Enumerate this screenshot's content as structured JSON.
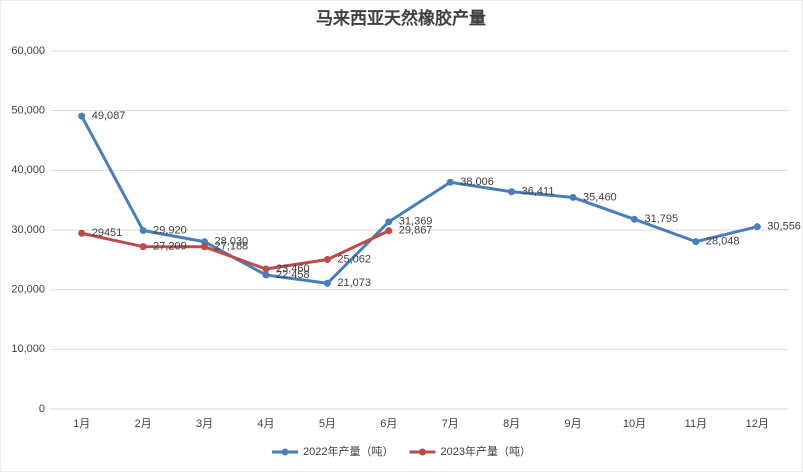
{
  "chart_data": {
    "type": "line",
    "title": "马来西亚天然橡胶产量",
    "categories": [
      "1月",
      "2月",
      "3月",
      "4月",
      "5月",
      "6月",
      "7月",
      "8月",
      "9月",
      "10月",
      "11月",
      "12月"
    ],
    "series": [
      {
        "name": "2022年产量（吨）",
        "color": "#4a7ebb",
        "values": [
          49087,
          29920,
          28030,
          22458,
          21073,
          31369,
          38006,
          36411,
          35460,
          31795,
          28048,
          30556
        ],
        "value_labels": [
          "49,087",
          "29,920",
          "28,030",
          "22,458",
          "21,073",
          "31,369",
          "38,006",
          "36,411",
          "35,460",
          "31,795",
          "28,048",
          "30,556"
        ]
      },
      {
        "name": "2023年产量（吨）",
        "color": "#be4b48",
        "values": [
          29451,
          27209,
          27188,
          23460,
          25062,
          29867,
          null,
          null,
          null,
          null,
          null,
          null
        ],
        "value_labels": [
          "29451",
          "27,209",
          "27,188",
          "23,460",
          "25,062",
          "29,867",
          null,
          null,
          null,
          null,
          null,
          null
        ]
      }
    ],
    "ylim": [
      0,
      60000
    ],
    "yticks": [
      0,
      {
        "value": 10000,
        "label": "10,000"
      },
      {
        "value": 20000,
        "label": "20,000"
      },
      {
        "value": 30000,
        "label": "30,000"
      },
      {
        "value": 40000,
        "label": "40,000"
      },
      {
        "value": 50000,
        "label": "50,000"
      },
      {
        "value": 60000,
        "label": "60,000"
      }
    ],
    "grid": true,
    "legend": "bottom"
  }
}
